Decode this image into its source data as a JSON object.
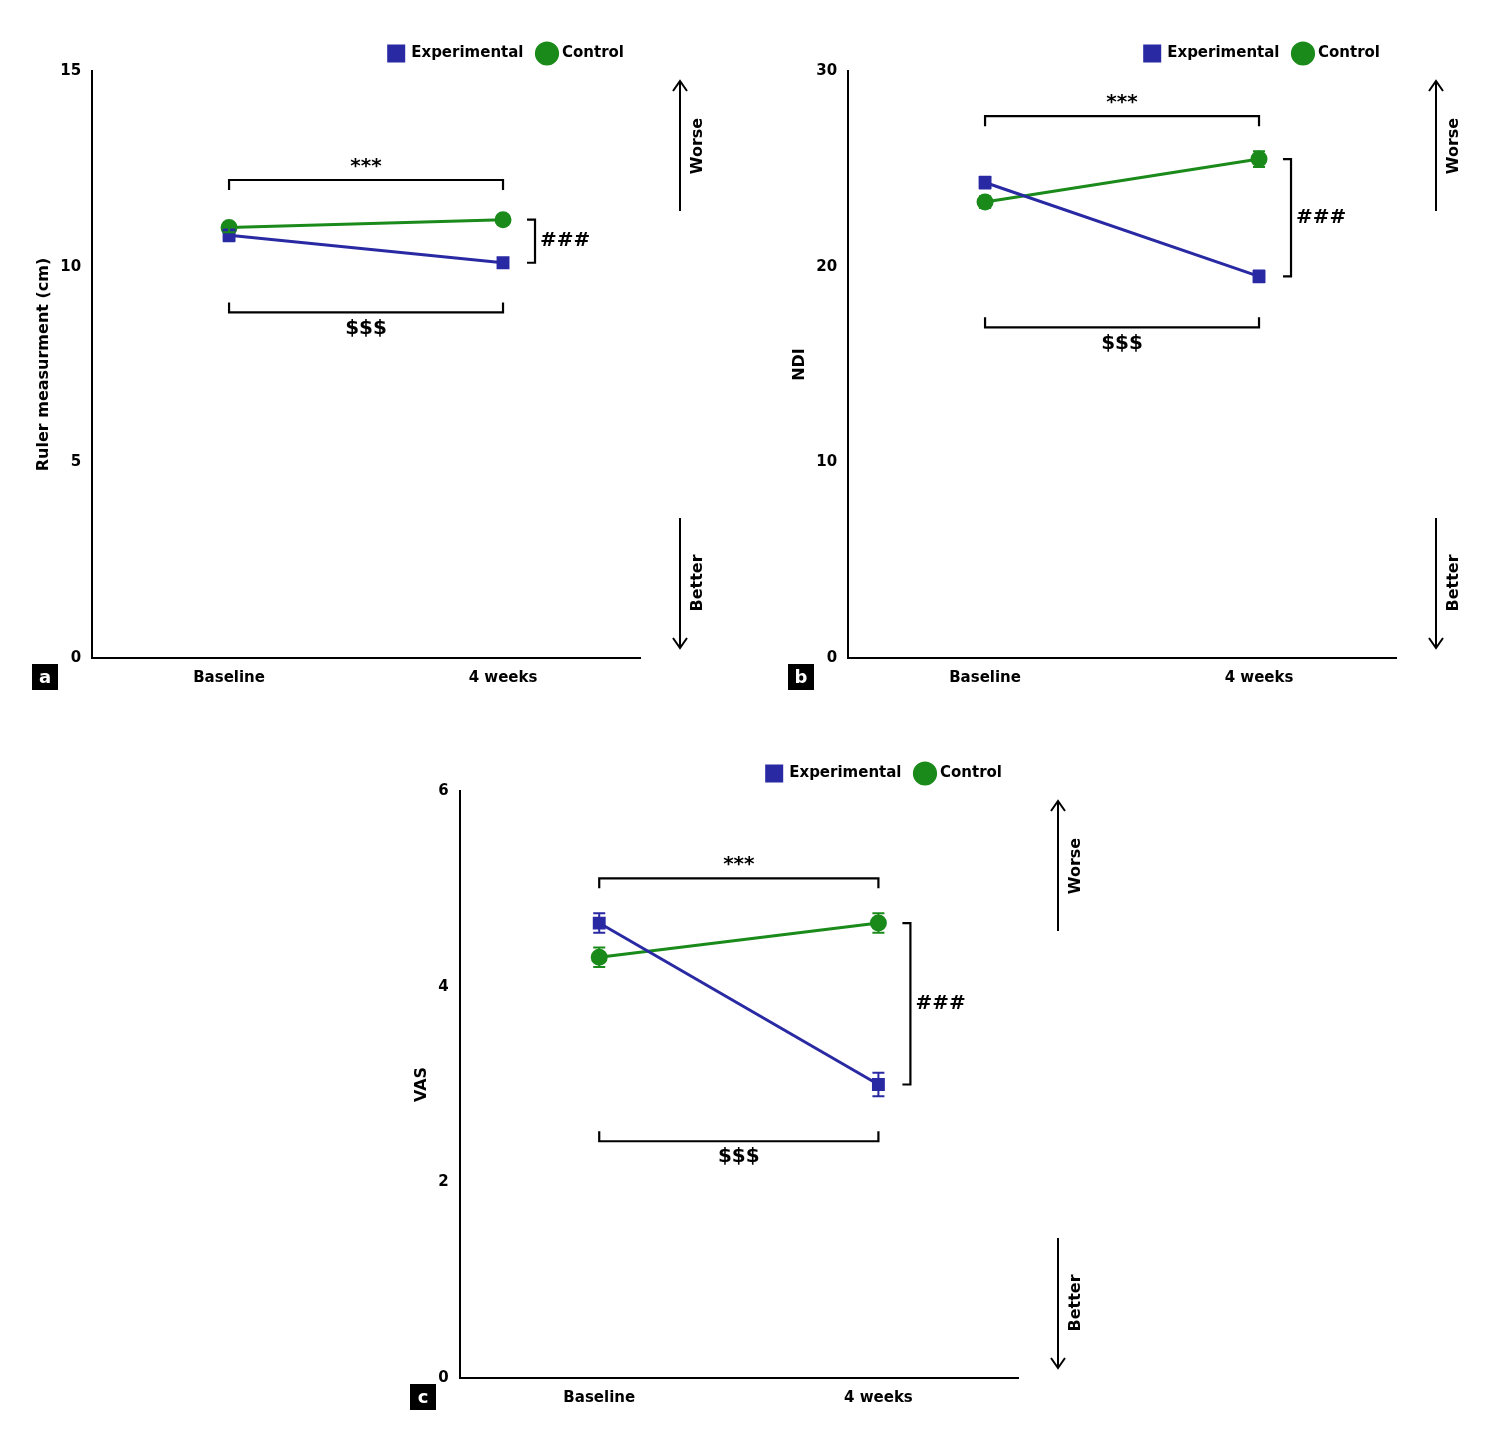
{
  "chart_data": [
    {
      "type": "line",
      "panel_label": "a",
      "ylabel": "Ruler measurment (cm)",
      "categories": [
        "Baseline",
        "4 weeks"
      ],
      "series": [
        {
          "name": "Experimental",
          "color": "#2929a3",
          "marker": "square",
          "values": [
            10.8,
            10.1
          ],
          "errors": [
            0.15,
            0.12
          ]
        },
        {
          "name": "Control",
          "color": "#1a8a1a",
          "marker": "circle",
          "values": [
            11.0,
            11.2
          ],
          "errors": [
            0.12,
            0.12
          ]
        }
      ],
      "ylim": [
        0,
        15
      ],
      "yticks": [
        0,
        5,
        10,
        15
      ],
      "grid": false,
      "legend": "upper right",
      "annotations": [
        {
          "text": "***",
          "series": "Experimental"
        },
        {
          "text": "$$$",
          "series": "Control"
        },
        {
          "text": "###",
          "category": "4 weeks"
        },
        {
          "text": "Worse",
          "arrow": "up"
        },
        {
          "text": "Better",
          "arrow": "down"
        }
      ]
    },
    {
      "type": "line",
      "panel_label": "b",
      "ylabel": "NDI",
      "categories": [
        "Baseline",
        "4 weeks"
      ],
      "series": [
        {
          "name": "Experimental",
          "color": "#2929a3",
          "marker": "square",
          "values": [
            24.3,
            19.5
          ],
          "errors": [
            0.3,
            0.3
          ]
        },
        {
          "name": "Control",
          "color": "#1a8a1a",
          "marker": "circle",
          "values": [
            23.3,
            25.5
          ],
          "errors": [
            0.3,
            0.4
          ]
        }
      ],
      "ylim": [
        0,
        30
      ],
      "yticks": [
        0,
        10,
        20,
        30
      ],
      "grid": false,
      "legend": "upper right",
      "annotations": [
        {
          "text": "***",
          "series": "Experimental"
        },
        {
          "text": "$$$",
          "series": "Control"
        },
        {
          "text": "###",
          "category": "4 weeks"
        },
        {
          "text": "Worse",
          "arrow": "up"
        },
        {
          "text": "Better",
          "arrow": "down"
        }
      ]
    },
    {
      "type": "line",
      "panel_label": "c",
      "ylabel": "VAS",
      "categories": [
        "Baseline",
        "4 weeks"
      ],
      "series": [
        {
          "name": "Experimental",
          "color": "#2929a3",
          "marker": "square",
          "values": [
            4.65,
            3.0
          ],
          "errors": [
            0.1,
            0.12
          ]
        },
        {
          "name": "Control",
          "color": "#1a8a1a",
          "marker": "circle",
          "values": [
            4.3,
            4.65
          ],
          "errors": [
            0.1,
            0.1
          ]
        }
      ],
      "ylim": [
        0,
        6
      ],
      "yticks": [
        0,
        2,
        4,
        6
      ],
      "grid": false,
      "legend": "upper right",
      "annotations": [
        {
          "text": "***",
          "series": "Experimental"
        },
        {
          "text": "$$$",
          "series": "Control"
        },
        {
          "text": "###",
          "category": "4 weeks"
        },
        {
          "text": "Worse",
          "arrow": "up"
        },
        {
          "text": "Better",
          "arrow": "down"
        }
      ]
    }
  ]
}
